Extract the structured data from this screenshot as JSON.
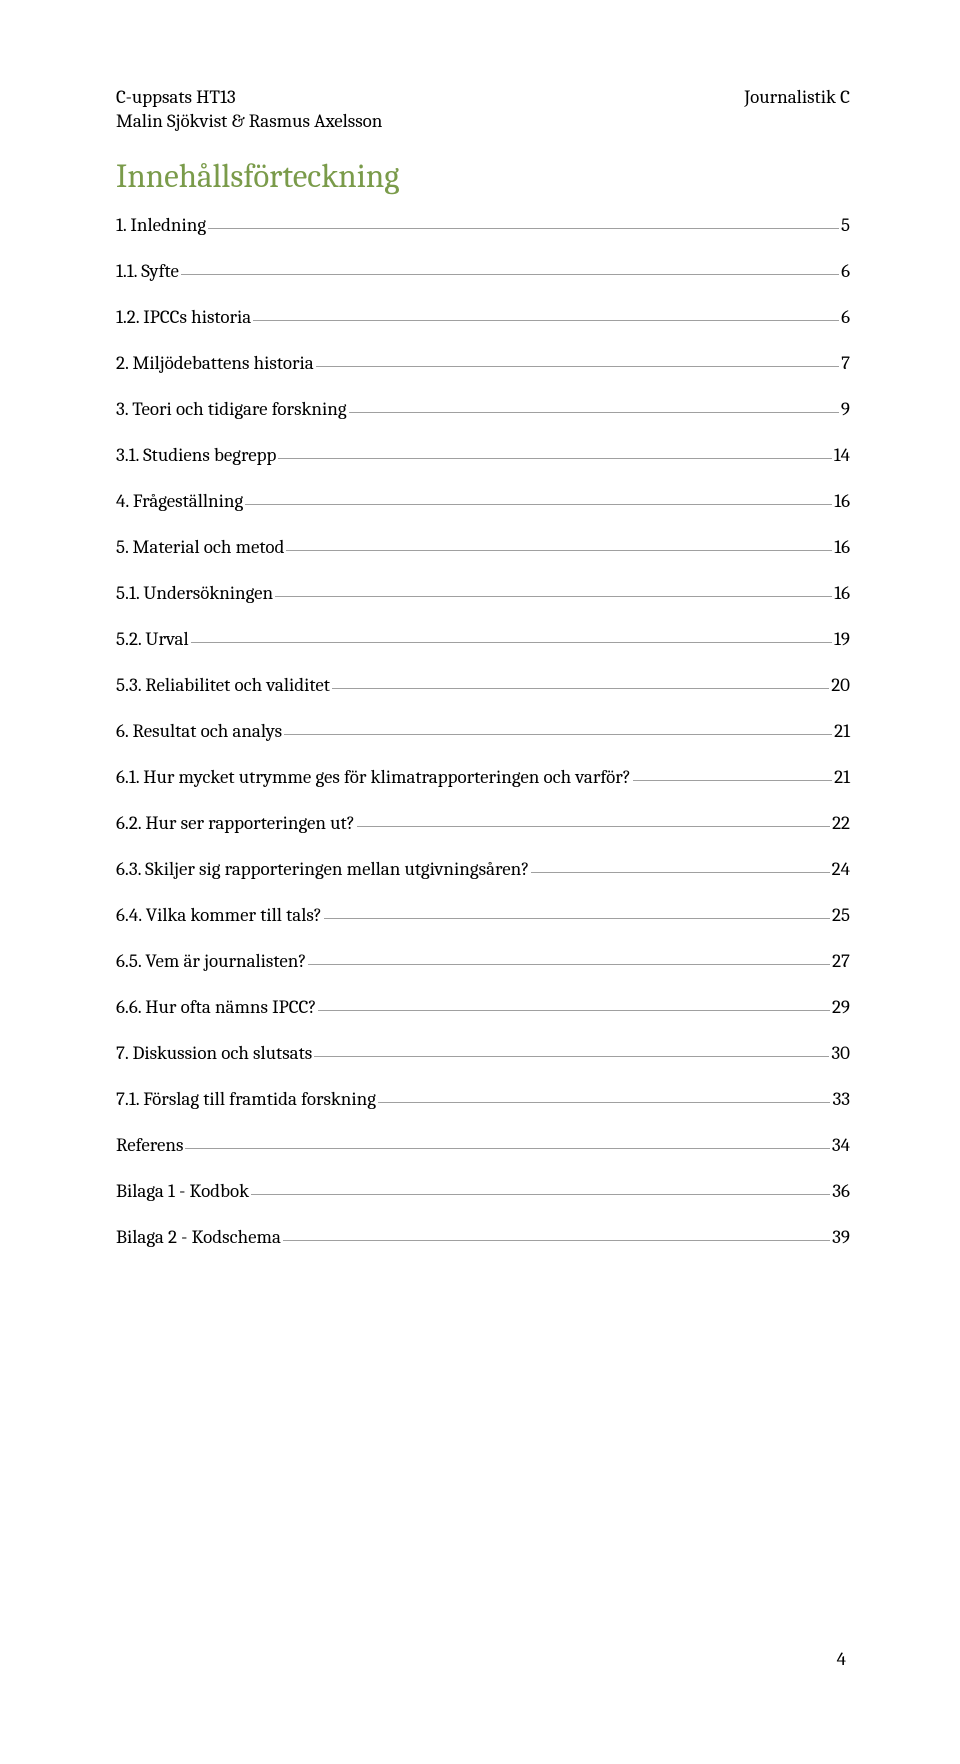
{
  "header": {
    "left1": "C-uppsats HT13",
    "right1": "Journalistik C",
    "left2": "Malin Sjökvist & Rasmus Axelsson"
  },
  "title": "Innehållsförteckning",
  "toc": [
    {
      "label": "1. Inledning",
      "page": "5"
    },
    {
      "label": "1.1. Syfte",
      "page": "6"
    },
    {
      "label": "1.2. IPCCs historia",
      "page": "6"
    },
    {
      "label": "2. Miljödebattens historia",
      "page": "7"
    },
    {
      "label": "3. Teori och tidigare forskning",
      "page": "9"
    },
    {
      "label": "3.1. Studiens begrepp",
      "page": "14"
    },
    {
      "label": "4. Frågeställning",
      "page": "16"
    },
    {
      "label": "5. Material och metod",
      "page": "16"
    },
    {
      "label": "5.1. Undersökningen",
      "page": "16"
    },
    {
      "label": "5.2. Urval",
      "page": "19"
    },
    {
      "label": "5.3. Reliabilitet och validitet",
      "page": "20"
    },
    {
      "label": "6. Resultat och analys",
      "page": "21"
    },
    {
      "label": "6.1. Hur mycket utrymme ges för klimatrapporteringen och varför?",
      "page": "21"
    },
    {
      "label": "6.2. Hur ser rapporteringen ut?",
      "page": "22"
    },
    {
      "label": "6.3. Skiljer sig rapporteringen mellan utgivningsåren?",
      "page": "24"
    },
    {
      "label": "6.4. Vilka kommer till tals?",
      "page": "25"
    },
    {
      "label": "6.5. Vem är journalisten?",
      "page": "27"
    },
    {
      "label": "6.6. Hur ofta nämns IPCC?",
      "page": "29"
    },
    {
      "label": "7. Diskussion och slutsats",
      "page": "30"
    },
    {
      "label": "7.1. Förslag till framtida forskning",
      "page": "33"
    },
    {
      "label": "Referens",
      "page": "34"
    },
    {
      "label": "Bilaga 1 - Kodbok",
      "page": "36"
    },
    {
      "label": "Bilaga 2 - Kodschema",
      "page": "39"
    }
  ],
  "footer_page": "4",
  "colors": {
    "title": "#7a9b4a",
    "text": "#000000",
    "leader": "#a0a0a0",
    "background": "#ffffff"
  },
  "fonts": {
    "body_size_pt": 14,
    "title_size_pt": 24,
    "family": "Cambria / serif"
  }
}
